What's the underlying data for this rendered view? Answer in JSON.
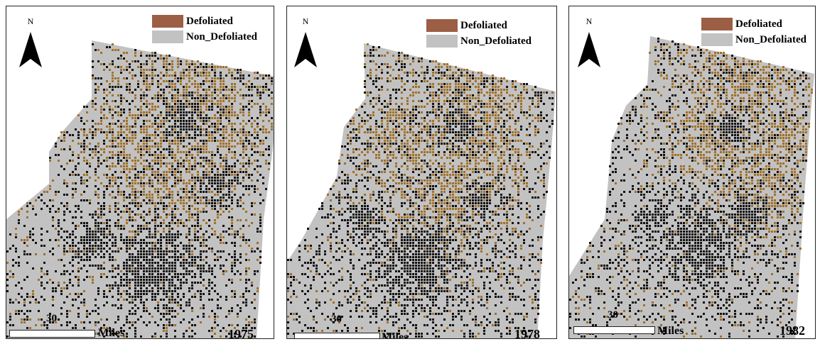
{
  "legend": [
    {
      "label": "Defoliated",
      "color": "#9c5e45"
    },
    {
      "label": "Non_Defoliated",
      "color": "#c2c2c2"
    }
  ],
  "north_label": "N",
  "scale": {
    "value": "30",
    "unit": "Miles"
  },
  "colors": {
    "non_defoliated": "#c2c2c2",
    "defoliated_pattern": "#a0702a",
    "water_forest": "#111111",
    "frame": "#222222"
  },
  "maps": [
    {
      "year": "1975"
    },
    {
      "year": "1978"
    },
    {
      "year": "1982"
    }
  ]
}
